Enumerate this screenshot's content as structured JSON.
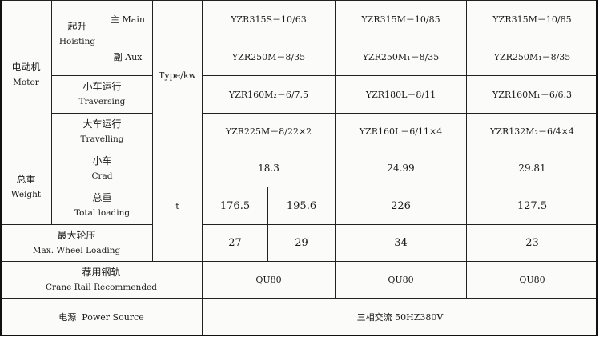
{
  "motor": {
    "label_cn": "电动机",
    "label_en": "Motor",
    "hoisting_cn": "起升",
    "hoisting_en": "Hoisting",
    "main": "主 Main",
    "aux": "副 Aux",
    "traversing_cn": "小车运行",
    "traversing_en": "Traversing",
    "travelling_cn": "大车运行",
    "travelling_en": "Travelling",
    "unit": "Type/kw",
    "main_values": [
      "YZR315S－10/63",
      "YZR315M－10/85",
      "YZR315M－10/85"
    ],
    "aux_values": [
      "YZR250M－8/35",
      "YZR250M₁－8/35",
      "YZR250M₁－8/35"
    ],
    "traversing_values": [
      "YZR160M₂－6/7.5",
      "YZR180L－8/11",
      "YZR160M₁－6/6.3"
    ],
    "travelling_values": [
      "YZR225M－8/22×2",
      "YZR160L－6/11×4",
      "YZR132M₂－6/4×4"
    ]
  },
  "weight": {
    "label_cn": "总重",
    "label_en": "Weight",
    "crad_cn": "小车",
    "crad_en": "Crad",
    "total_cn": "总重",
    "total_en": "Total loading",
    "unit": "t",
    "crad_values": [
      "18.3",
      "24.99",
      "29.81"
    ],
    "total_values": [
      "176.5",
      "195.6",
      "226",
      "127.5"
    ]
  },
  "wheel": {
    "label_cn": "最大轮压",
    "label_en": "Max. Wheel Loading",
    "values": [
      "27",
      "29",
      "34",
      "23"
    ]
  },
  "rail": {
    "label_cn": "荐用钢轨",
    "label_en": "Crane Rail Recommended",
    "values": [
      "QU80",
      "QU80",
      "QU80"
    ]
  },
  "power": {
    "label": "电源  Power Source",
    "value": "三相交流 50HZ380V"
  }
}
